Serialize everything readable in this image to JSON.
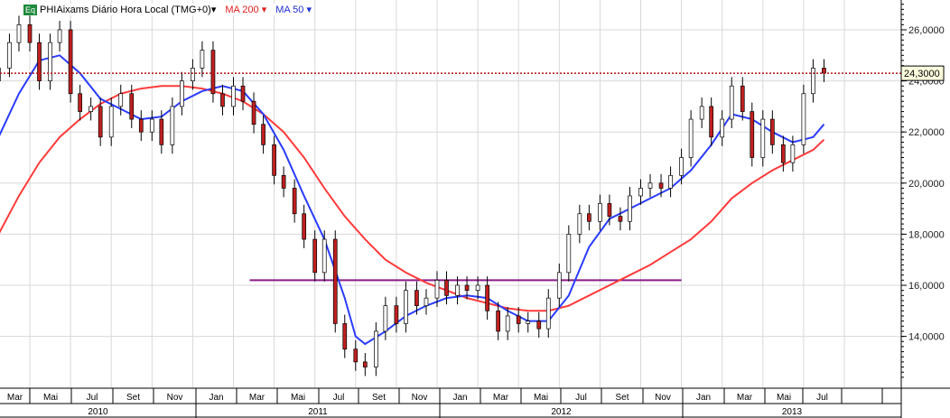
{
  "legend": {
    "badge": "Eq",
    "instrument": "PHIAixams Diário Hora Local (TMG+0)▾",
    "ma200": "MA 200 ▾",
    "ma50": "MA 50 ▾"
  },
  "colors": {
    "ma200": "#ff3b3b",
    "ma50": "#2a3cff",
    "support": "#8a1a8a",
    "last_price": "#b01010",
    "up": "#000000",
    "down": "#c02020"
  },
  "chart_data": {
    "type": "candlestick",
    "last_price_label": "24,3000",
    "last_price": 24.3,
    "yticks": [
      "14,0000",
      "16,0000",
      "18,0000",
      "20,0000",
      "22,0000",
      "24,0000",
      "26,0000"
    ],
    "ylim": [
      12,
      27.2
    ],
    "months": [
      "Mar",
      "Mai",
      "Jul",
      "Set",
      "Nov",
      "Jan",
      "Mar",
      "Mai",
      "Jul",
      "Set",
      "Nov",
      "Jan",
      "Mar",
      "Mai",
      "Jul",
      "Set",
      "Nov",
      "Jan",
      "Mar",
      "Mai",
      "Jul"
    ],
    "years": [
      "2010",
      "2011",
      "2012",
      "2013"
    ],
    "support_line": {
      "value": 16.2,
      "from": "2011-03-25",
      "to": "2013-01-01"
    },
    "closes": [
      [
        "2010-03-01",
        24.0
      ],
      [
        "2010-03-15",
        24.5
      ],
      [
        "2010-04-01",
        25.5
      ],
      [
        "2010-04-15",
        26.2
      ],
      [
        "2010-05-01",
        25.5
      ],
      [
        "2010-05-15",
        24.0
      ],
      [
        "2010-06-01",
        25.5
      ],
      [
        "2010-06-15",
        26.0
      ],
      [
        "2010-07-01",
        23.5
      ],
      [
        "2010-07-15",
        22.8
      ],
      [
        "2010-08-01",
        23.0
      ],
      [
        "2010-08-15",
        21.8
      ],
      [
        "2010-09-01",
        23.0
      ],
      [
        "2010-09-15",
        23.5
      ],
      [
        "2010-10-01",
        22.5
      ],
      [
        "2010-10-15",
        22.0
      ],
      [
        "2010-11-01",
        22.5
      ],
      [
        "2010-11-15",
        21.5
      ],
      [
        "2010-12-01",
        23.0
      ],
      [
        "2010-12-15",
        24.0
      ],
      [
        "2011-01-01",
        24.5
      ],
      [
        "2011-01-15",
        25.2
      ],
      [
        "2011-02-01",
        23.5
      ],
      [
        "2011-02-15",
        23.0
      ],
      [
        "2011-03-01",
        23.8
      ],
      [
        "2011-03-15",
        23.2
      ],
      [
        "2011-04-01",
        22.3
      ],
      [
        "2011-04-15",
        21.5
      ],
      [
        "2011-05-01",
        20.3
      ],
      [
        "2011-05-15",
        19.8
      ],
      [
        "2011-06-01",
        18.8
      ],
      [
        "2011-06-15",
        17.8
      ],
      [
        "2011-07-01",
        16.5
      ],
      [
        "2011-07-15",
        17.8
      ],
      [
        "2011-08-01",
        14.5
      ],
      [
        "2011-08-15",
        13.5
      ],
      [
        "2011-09-01",
        13.0
      ],
      [
        "2011-09-15",
        12.8
      ],
      [
        "2011-10-01",
        14.2
      ],
      [
        "2011-10-15",
        15.2
      ],
      [
        "2011-11-01",
        14.5
      ],
      [
        "2011-11-15",
        15.8
      ],
      [
        "2011-12-01",
        15.2
      ],
      [
        "2011-12-15",
        15.5
      ],
      [
        "2012-01-01",
        16.2
      ],
      [
        "2012-01-15",
        15.6
      ],
      [
        "2012-02-01",
        16.0
      ],
      [
        "2012-02-15",
        15.8
      ],
      [
        "2012-03-01",
        16.0
      ],
      [
        "2012-03-15",
        15.0
      ],
      [
        "2012-04-01",
        14.2
      ],
      [
        "2012-04-15",
        14.8
      ],
      [
        "2012-05-01",
        14.5
      ],
      [
        "2012-05-15",
        14.6
      ],
      [
        "2012-06-01",
        14.3
      ],
      [
        "2012-06-15",
        15.5
      ],
      [
        "2012-07-01",
        16.5
      ],
      [
        "2012-07-15",
        18.0
      ],
      [
        "2012-08-01",
        18.8
      ],
      [
        "2012-08-15",
        18.5
      ],
      [
        "2012-09-01",
        19.2
      ],
      [
        "2012-09-15",
        18.7
      ],
      [
        "2012-10-01",
        18.5
      ],
      [
        "2012-10-15",
        19.5
      ],
      [
        "2012-11-01",
        19.8
      ],
      [
        "2012-11-15",
        20.0
      ],
      [
        "2012-12-01",
        19.8
      ],
      [
        "2012-12-15",
        20.3
      ],
      [
        "2013-01-01",
        21.0
      ],
      [
        "2013-01-15",
        22.5
      ],
      [
        "2013-02-01",
        23.0
      ],
      [
        "2013-02-15",
        21.8
      ],
      [
        "2013-03-01",
        22.5
      ],
      [
        "2013-03-15",
        23.8
      ],
      [
        "2013-04-01",
        22.8
      ],
      [
        "2013-04-15",
        21.0
      ],
      [
        "2013-05-01",
        22.5
      ],
      [
        "2013-05-15",
        21.5
      ],
      [
        "2013-06-01",
        20.8
      ],
      [
        "2013-06-15",
        21.5
      ],
      [
        "2013-07-01",
        23.5
      ],
      [
        "2013-07-15",
        24.5
      ],
      [
        "2013-08-01",
        24.3
      ]
    ],
    "series": [
      {
        "name": "MA 200",
        "points": [
          [
            "2010-03-15",
            18.0
          ],
          [
            "2010-04-15",
            19.5
          ],
          [
            "2010-05-15",
            20.8
          ],
          [
            "2010-06-15",
            21.8
          ],
          [
            "2010-07-15",
            22.5
          ],
          [
            "2010-08-15",
            23.1
          ],
          [
            "2010-09-15",
            23.5
          ],
          [
            "2010-10-15",
            23.7
          ],
          [
            "2010-11-15",
            23.8
          ],
          [
            "2010-12-15",
            23.8
          ],
          [
            "2011-01-15",
            23.7
          ],
          [
            "2011-02-15",
            23.5
          ],
          [
            "2011-03-15",
            23.2
          ],
          [
            "2011-04-15",
            22.7
          ],
          [
            "2011-05-15",
            22.0
          ],
          [
            "2011-06-15",
            21.0
          ],
          [
            "2011-07-15",
            19.8
          ],
          [
            "2011-08-15",
            18.7
          ],
          [
            "2011-09-15",
            17.8
          ],
          [
            "2011-10-15",
            17.0
          ],
          [
            "2011-11-15",
            16.5
          ],
          [
            "2011-12-15",
            16.1
          ],
          [
            "2012-01-15",
            15.8
          ],
          [
            "2012-02-15",
            15.5
          ],
          [
            "2012-03-15",
            15.3
          ],
          [
            "2012-04-15",
            15.1
          ],
          [
            "2012-05-15",
            15.0
          ],
          [
            "2012-06-15",
            15.0
          ],
          [
            "2012-07-15",
            15.2
          ],
          [
            "2012-08-15",
            15.6
          ],
          [
            "2012-09-15",
            16.0
          ],
          [
            "2012-10-15",
            16.4
          ],
          [
            "2012-11-15",
            16.8
          ],
          [
            "2012-12-15",
            17.3
          ],
          [
            "2013-01-15",
            17.8
          ],
          [
            "2013-02-15",
            18.5
          ],
          [
            "2013-03-15",
            19.4
          ],
          [
            "2013-04-15",
            20.0
          ],
          [
            "2013-05-15",
            20.5
          ],
          [
            "2013-06-15",
            20.9
          ],
          [
            "2013-07-15",
            21.3
          ],
          [
            "2013-08-01",
            21.7
          ]
        ]
      },
      {
        "name": "MA 50",
        "points": [
          [
            "2010-03-15",
            21.8
          ],
          [
            "2010-04-15",
            23.5
          ],
          [
            "2010-05-15",
            24.8
          ],
          [
            "2010-06-15",
            25.0
          ],
          [
            "2010-07-15",
            24.3
          ],
          [
            "2010-08-15",
            23.3
          ],
          [
            "2010-09-15",
            22.9
          ],
          [
            "2010-10-15",
            22.5
          ],
          [
            "2010-11-15",
            22.6
          ],
          [
            "2010-12-15",
            23.2
          ],
          [
            "2011-01-15",
            23.6
          ],
          [
            "2011-02-15",
            23.8
          ],
          [
            "2011-03-15",
            23.6
          ],
          [
            "2011-04-15",
            22.7
          ],
          [
            "2011-05-15",
            21.3
          ],
          [
            "2011-06-15",
            19.5
          ],
          [
            "2011-07-15",
            17.8
          ],
          [
            "2011-08-15",
            15.5
          ],
          [
            "2011-09-01",
            14.0
          ],
          [
            "2011-09-15",
            13.7
          ],
          [
            "2011-10-15",
            14.2
          ],
          [
            "2011-11-15",
            14.8
          ],
          [
            "2011-12-15",
            15.2
          ],
          [
            "2012-01-15",
            15.5
          ],
          [
            "2012-02-15",
            15.6
          ],
          [
            "2012-03-15",
            15.5
          ],
          [
            "2012-04-15",
            15.0
          ],
          [
            "2012-05-15",
            14.6
          ],
          [
            "2012-06-15",
            14.6
          ],
          [
            "2012-07-15",
            15.6
          ],
          [
            "2012-08-15",
            17.5
          ],
          [
            "2012-09-15",
            18.6
          ],
          [
            "2012-10-15",
            19.0
          ],
          [
            "2012-11-15",
            19.4
          ],
          [
            "2012-12-15",
            19.8
          ],
          [
            "2013-01-15",
            20.5
          ],
          [
            "2013-02-15",
            21.5
          ],
          [
            "2013-03-15",
            22.7
          ],
          [
            "2013-04-15",
            22.5
          ],
          [
            "2013-05-15",
            22.0
          ],
          [
            "2013-06-15",
            21.6
          ],
          [
            "2013-07-15",
            21.8
          ],
          [
            "2013-08-01",
            22.3
          ]
        ]
      }
    ]
  }
}
